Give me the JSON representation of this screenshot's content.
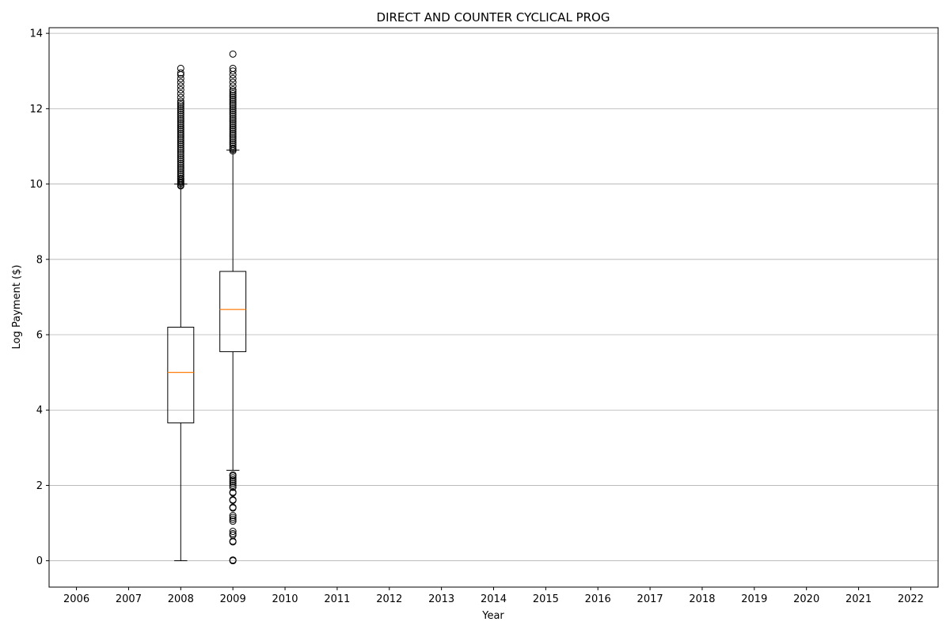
{
  "chart_data": {
    "type": "boxplot",
    "title": "DIRECT AND COUNTER CYCLICAL PROG",
    "xlabel": "Year",
    "ylabel": "Log Payment ($)",
    "categories": [
      "2006",
      "2007",
      "2008",
      "2009",
      "2010",
      "2011",
      "2012",
      "2013",
      "2014",
      "2015",
      "2016",
      "2017",
      "2018",
      "2019",
      "2020",
      "2021",
      "2022"
    ],
    "ylim": [
      -0.7,
      14.15
    ],
    "yticks": [
      0,
      2,
      4,
      6,
      8,
      10,
      12,
      14
    ],
    "grid": "y",
    "boxes": [
      {
        "category": "2008",
        "whisker_low": 0.0,
        "q1": 3.66,
        "median": 5.0,
        "q3": 6.2,
        "whisker_high": 10.0,
        "outliers": [
          9.95,
          9.98,
          10.02,
          10.05,
          10.08,
          10.12,
          10.15,
          10.2,
          10.25,
          10.3,
          10.35,
          10.4,
          10.45,
          10.5,
          10.55,
          10.6,
          10.65,
          10.7,
          10.75,
          10.8,
          10.85,
          10.9,
          10.95,
          11.0,
          11.05,
          11.1,
          11.15,
          11.2,
          11.25,
          11.3,
          11.35,
          11.4,
          11.45,
          11.5,
          11.55,
          11.6,
          11.65,
          11.7,
          11.75,
          11.8,
          11.85,
          11.9,
          11.95,
          12.0,
          12.05,
          12.1,
          12.15,
          12.2,
          12.3,
          12.4,
          12.5,
          12.6,
          12.7,
          12.8,
          12.9,
          12.95,
          13.07
        ]
      },
      {
        "category": "2009",
        "whisker_low": 2.4,
        "q1": 5.55,
        "median": 6.67,
        "q3": 7.68,
        "whisker_high": 10.9,
        "outliers": [
          0.0,
          0.02,
          0.5,
          0.52,
          0.68,
          0.72,
          0.78,
          1.05,
          1.1,
          1.15,
          1.2,
          1.4,
          1.42,
          1.6,
          1.62,
          1.8,
          1.82,
          1.95,
          2.0,
          2.05,
          2.1,
          2.15,
          2.2,
          2.25,
          2.28,
          10.88,
          10.92,
          10.95,
          11.0,
          11.05,
          11.1,
          11.15,
          11.2,
          11.25,
          11.3,
          11.35,
          11.4,
          11.45,
          11.5,
          11.55,
          11.6,
          11.65,
          11.7,
          11.75,
          11.8,
          11.85,
          11.9,
          11.95,
          12.0,
          12.05,
          12.1,
          12.15,
          12.2,
          12.25,
          12.3,
          12.35,
          12.4,
          12.45,
          12.5,
          12.6,
          12.7,
          12.8,
          12.9,
          13.0,
          13.07,
          13.45
        ]
      }
    ],
    "colors": {
      "box": "#000000",
      "median": "#ff7f0e",
      "grid": "#b0b0b0"
    }
  }
}
